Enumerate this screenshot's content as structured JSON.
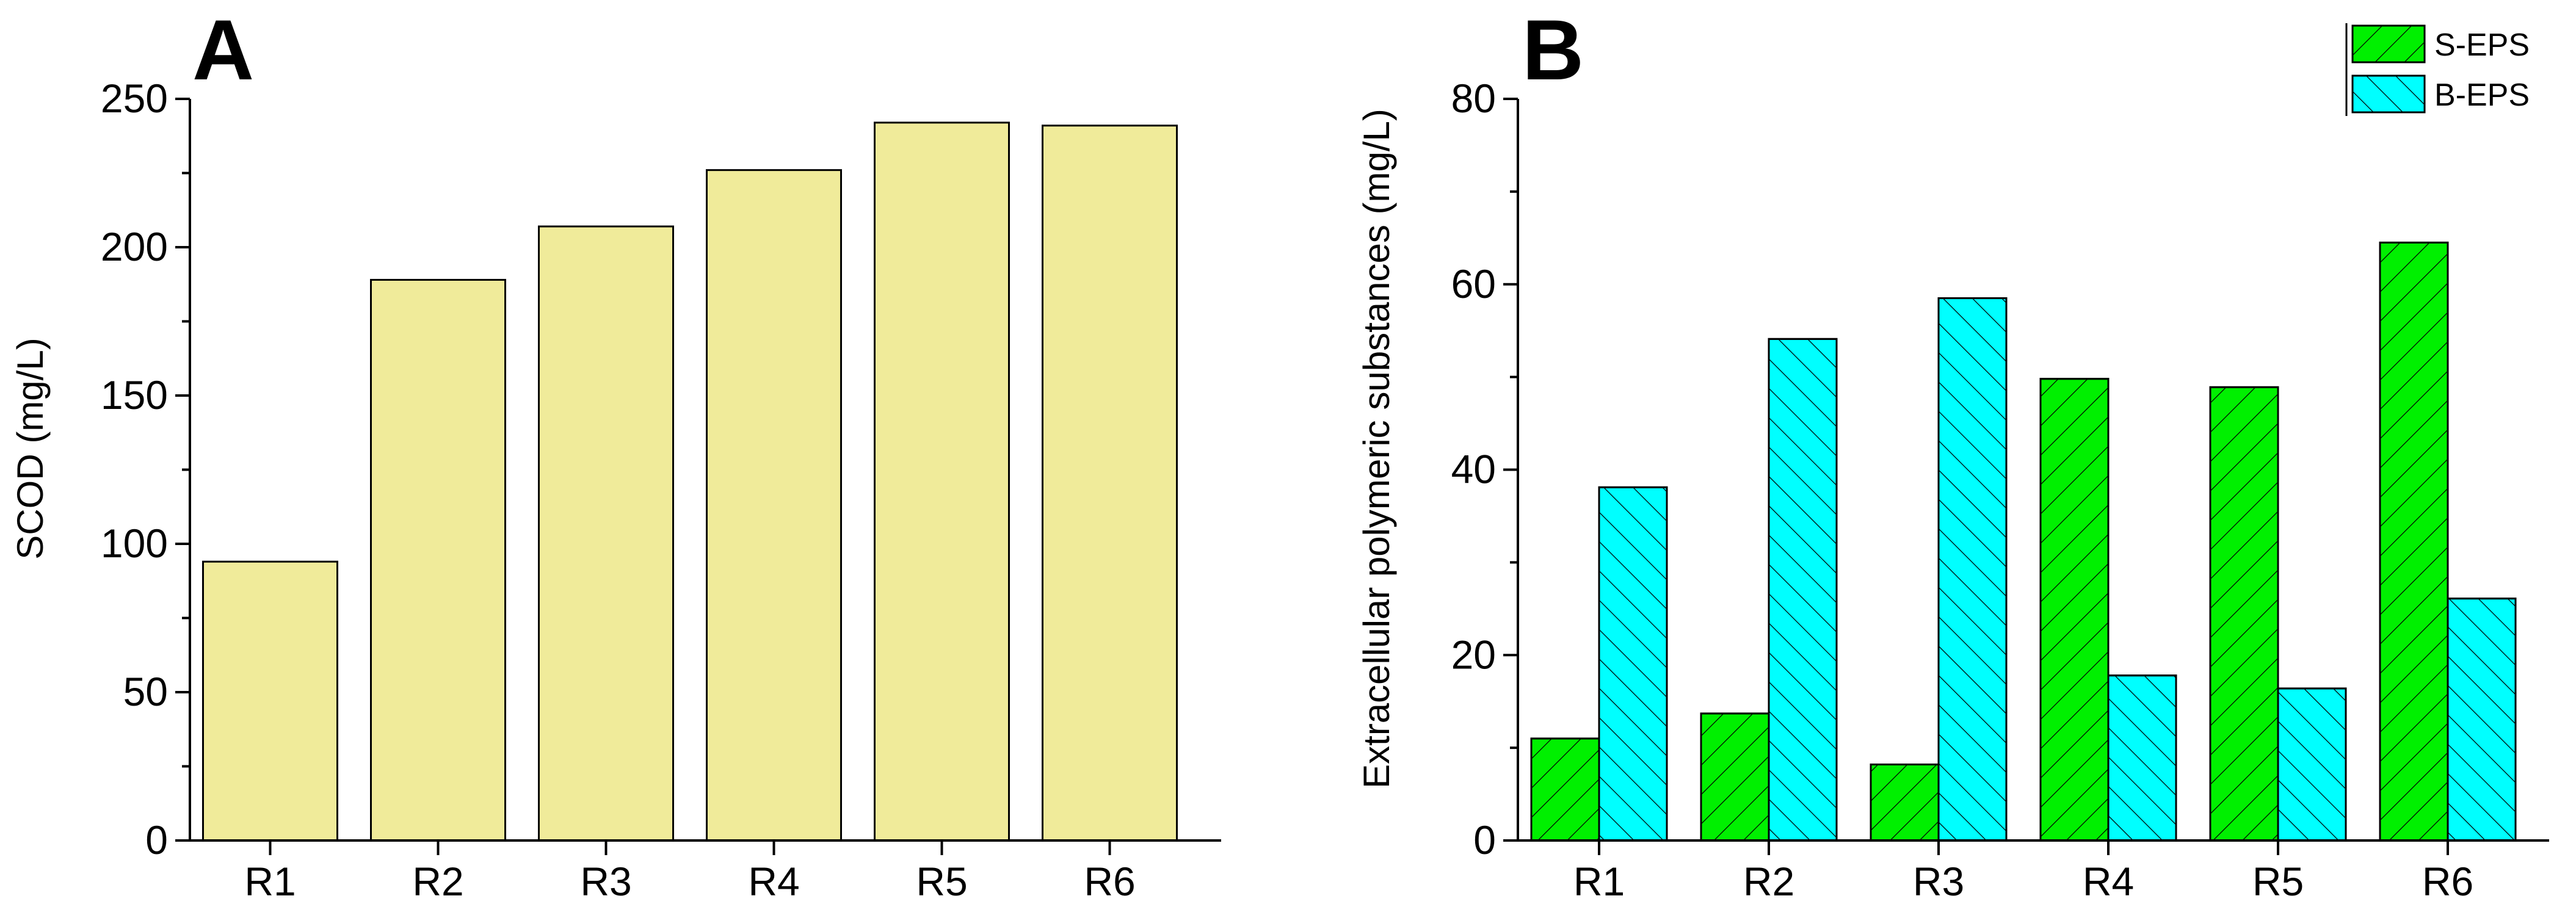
{
  "chart_data": [
    {
      "panel": "A",
      "type": "bar",
      "ylabel": "SCOD (mg/L)",
      "xlabel": "",
      "categories": [
        "R1",
        "R2",
        "R3",
        "R4",
        "R5",
        "R6"
      ],
      "series": [
        {
          "name": "SCOD",
          "values": [
            94,
            189,
            207,
            226,
            242,
            241
          ],
          "color": "#f0eb9a",
          "pattern": "none"
        }
      ],
      "ylim": [
        0,
        250
      ],
      "yticks": [
        0,
        50,
        100,
        150,
        200,
        250
      ],
      "grid": false,
      "legend": null
    },
    {
      "panel": "B",
      "type": "bar",
      "ylabel": "Extracellular polymeric substances (mg/L)",
      "xlabel": "",
      "categories": [
        "R1",
        "R2",
        "R3",
        "R4",
        "R5",
        "R6"
      ],
      "series": [
        {
          "name": "S-EPS",
          "values": [
            11,
            13.7,
            8.2,
            49.8,
            48.9,
            64.5
          ],
          "color": "#00f000",
          "pattern": "forward-hatch"
        },
        {
          "name": "B-EPS",
          "values": [
            38.1,
            54.1,
            58.5,
            17.8,
            16.4,
            26.1
          ],
          "color": "#00ffff",
          "pattern": "back-hatch"
        }
      ],
      "ylim": [
        0,
        80
      ],
      "yticks": [
        0,
        20,
        40,
        60,
        80
      ],
      "grid": false,
      "legend": "top-right"
    }
  ]
}
